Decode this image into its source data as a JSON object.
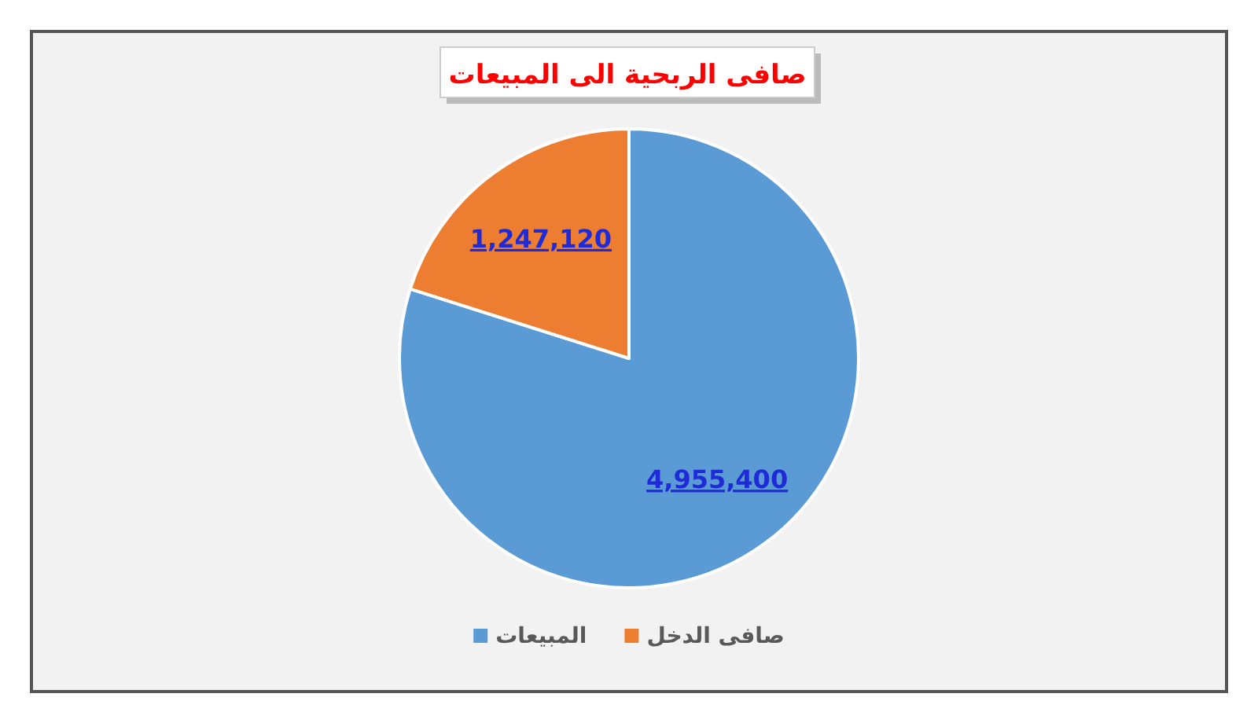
{
  "chart_data": {
    "type": "pie",
    "title": "صافى الربحية الى المبيعات",
    "categories": [
      "المبيعات",
      "صافى الدخل"
    ],
    "values": [
      4955400,
      1247120
    ],
    "colors": [
      "#5b9bd5",
      "#ed7d31"
    ],
    "value_labels": [
      "4,955,400",
      "1,247,120"
    ],
    "legend": "bottom"
  }
}
